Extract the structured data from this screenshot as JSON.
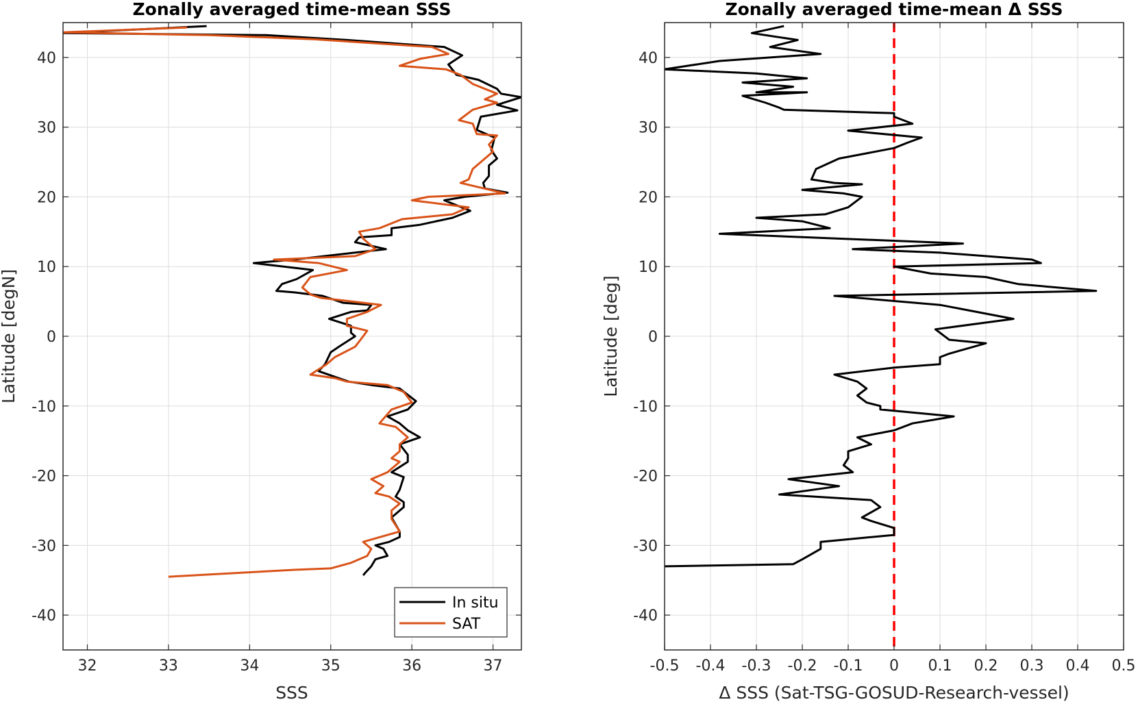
{
  "chart_data": [
    {
      "type": "line",
      "title": "Zonally averaged time-mean SSS",
      "xlabel": "SSS",
      "ylabel": "Latitude [degN]",
      "xlim": [
        31.7,
        37.35
      ],
      "ylim": [
        -45,
        45
      ],
      "xticks": [
        32,
        33,
        34,
        35,
        36,
        37
      ],
      "yticks": [
        -40,
        -30,
        -20,
        -10,
        0,
        10,
        20,
        30,
        40
      ],
      "grid": true,
      "legend_location": "bottom-right",
      "series": [
        {
          "name": "In situ",
          "color": "#000000",
          "points": [
            [
              33.47,
              44.5
            ],
            [
              31.7,
              43.5
            ],
            [
              34.2,
              43.2
            ],
            [
              35.2,
              42.5
            ],
            [
              36.4,
              41.5
            ],
            [
              36.62,
              40.3
            ],
            [
              36.45,
              39.0
            ],
            [
              36.55,
              37.5
            ],
            [
              36.82,
              36.8
            ],
            [
              37.05,
              35.5
            ],
            [
              37.1,
              34.8
            ],
            [
              37.35,
              34.3
            ],
            [
              37.05,
              33.2
            ],
            [
              37.3,
              32.4
            ],
            [
              36.85,
              31.5
            ],
            [
              36.8,
              29.6
            ],
            [
              37.02,
              28.5
            ],
            [
              36.98,
              26.7
            ],
            [
              37.05,
              25.5
            ],
            [
              36.95,
              24.5
            ],
            [
              36.95,
              23.0
            ],
            [
              36.88,
              22.0
            ],
            [
              36.9,
              21.2
            ],
            [
              37.18,
              20.6
            ],
            [
              36.65,
              20.0
            ],
            [
              36.4,
              19.5
            ],
            [
              36.72,
              18.0
            ],
            [
              36.5,
              17.0
            ],
            [
              36.1,
              16.0
            ],
            [
              35.75,
              15.5
            ],
            [
              35.75,
              14.5
            ],
            [
              35.35,
              14.2
            ],
            [
              35.3,
              13.5
            ],
            [
              35.68,
              12.5
            ],
            [
              35.15,
              11.8
            ],
            [
              34.55,
              11.0
            ],
            [
              34.05,
              10.5
            ],
            [
              34.78,
              9.5
            ],
            [
              34.58,
              8.2
            ],
            [
              34.4,
              7.5
            ],
            [
              34.33,
              6.5
            ],
            [
              34.55,
              6.3
            ],
            [
              34.9,
              5.8
            ],
            [
              35.15,
              4.8
            ],
            [
              35.5,
              4.5
            ],
            [
              35.45,
              3.7
            ],
            [
              35.25,
              3.5
            ],
            [
              34.98,
              2.5
            ],
            [
              35.25,
              1.5
            ],
            [
              35.25,
              0.5
            ],
            [
              35.3,
              0.0
            ],
            [
              35.1,
              -1.5
            ],
            [
              35.0,
              -2.3
            ],
            [
              34.93,
              -4.0
            ],
            [
              34.85,
              -5.0
            ],
            [
              35.22,
              -6.5
            ],
            [
              35.5,
              -7.0
            ],
            [
              35.85,
              -7.5
            ],
            [
              36.05,
              -9.3
            ],
            [
              35.95,
              -10.5
            ],
            [
              35.7,
              -11.5
            ],
            [
              35.85,
              -12.5
            ],
            [
              35.95,
              -13.5
            ],
            [
              36.1,
              -14.5
            ],
            [
              35.85,
              -15.5
            ],
            [
              35.95,
              -17.0
            ],
            [
              35.95,
              -18.0
            ],
            [
              35.75,
              -19.5
            ],
            [
              35.9,
              -20.2
            ],
            [
              35.85,
              -22.0
            ],
            [
              35.8,
              -23.0
            ],
            [
              35.9,
              -23.8
            ],
            [
              35.9,
              -24.5
            ],
            [
              35.75,
              -26.0
            ],
            [
              35.85,
              -28.0
            ],
            [
              35.85,
              -28.8
            ],
            [
              35.72,
              -29.5
            ],
            [
              35.55,
              -30.0
            ],
            [
              35.65,
              -30.5
            ],
            [
              35.7,
              -31.5
            ],
            [
              35.55,
              -32.0
            ],
            [
              35.5,
              -33.0
            ],
            [
              35.42,
              -34.0
            ],
            [
              35.4,
              -34.3
            ]
          ]
        },
        {
          "name": "SAT",
          "color": "#D95319",
          "points": [
            [
              33.23,
              44.3
            ],
            [
              31.7,
              43.6
            ],
            [
              33.5,
              43.2
            ],
            [
              34.8,
              42.6
            ],
            [
              36.25,
              41.5
            ],
            [
              36.45,
              40.5
            ],
            [
              36.1,
              39.8
            ],
            [
              35.85,
              38.8
            ],
            [
              36.42,
              38.3
            ],
            [
              36.6,
              37.5
            ],
            [
              36.75,
              36.2
            ],
            [
              37.05,
              34.8
            ],
            [
              36.9,
              34.0
            ],
            [
              37.05,
              33.5
            ],
            [
              36.75,
              32.5
            ],
            [
              36.58,
              31.0
            ],
            [
              36.75,
              30.5
            ],
            [
              36.8,
              29.0
            ],
            [
              37.05,
              28.8
            ],
            [
              36.95,
              27.5
            ],
            [
              37.0,
              26.5
            ],
            [
              36.85,
              25.0
            ],
            [
              36.75,
              24.0
            ],
            [
              36.7,
              22.5
            ],
            [
              36.6,
              22.0
            ],
            [
              37.15,
              20.5
            ],
            [
              36.2,
              20.0
            ],
            [
              36.0,
              19.5
            ],
            [
              36.35,
              19.0
            ],
            [
              36.7,
              18.5
            ],
            [
              36.5,
              17.5
            ],
            [
              35.88,
              16.8
            ],
            [
              35.6,
              15.5
            ],
            [
              35.35,
              15.0
            ],
            [
              35.4,
              14.0
            ],
            [
              35.55,
              12.5
            ],
            [
              35.3,
              11.5
            ],
            [
              34.3,
              11.0
            ],
            [
              34.85,
              10.5
            ],
            [
              35.2,
              9.5
            ],
            [
              34.75,
              8.5
            ],
            [
              34.65,
              7.0
            ],
            [
              34.75,
              6.0
            ],
            [
              34.88,
              5.5
            ],
            [
              35.4,
              4.8
            ],
            [
              35.62,
              4.5
            ],
            [
              35.45,
              3.5
            ],
            [
              35.2,
              2.5
            ],
            [
              35.2,
              1.5
            ],
            [
              35.45,
              0.8
            ],
            [
              35.4,
              0.0
            ],
            [
              35.3,
              -1.5
            ],
            [
              35.05,
              -3.0
            ],
            [
              34.95,
              -4.0
            ],
            [
              34.75,
              -5.5
            ],
            [
              35.05,
              -6.0
            ],
            [
              35.2,
              -6.5
            ],
            [
              35.7,
              -7.0
            ],
            [
              35.9,
              -8.0
            ],
            [
              36.0,
              -9.5
            ],
            [
              35.75,
              -10.5
            ],
            [
              35.6,
              -12.5
            ],
            [
              35.8,
              -13.0
            ],
            [
              35.95,
              -14.5
            ],
            [
              35.85,
              -15.5
            ],
            [
              35.85,
              -16.5
            ],
            [
              35.75,
              -17.5
            ],
            [
              35.85,
              -18.0
            ],
            [
              35.7,
              -19.5
            ],
            [
              35.6,
              -20.0
            ],
            [
              35.5,
              -20.5
            ],
            [
              35.65,
              -21.5
            ],
            [
              35.55,
              -22.5
            ],
            [
              35.72,
              -23.0
            ],
            [
              35.85,
              -24.0
            ],
            [
              35.75,
              -25.0
            ],
            [
              35.75,
              -26.2
            ],
            [
              35.85,
              -28.0
            ],
            [
              35.7,
              -28.5
            ],
            [
              35.4,
              -29.5
            ],
            [
              35.5,
              -30.5
            ],
            [
              35.45,
              -31.5
            ],
            [
              35.25,
              -32.5
            ],
            [
              35.0,
              -33.3
            ],
            [
              34.55,
              -33.5
            ],
            [
              33.0,
              -34.5
            ]
          ]
        }
      ]
    },
    {
      "type": "line",
      "title": "Zonally averaged time-mean Δ SSS",
      "xlabel": "Δ SSS (Sat-TSG-GOSUD-Research-vessel)",
      "ylabel": "Latitude [deg]",
      "xlim": [
        -0.5,
        0.5
      ],
      "ylim": [
        -45,
        45
      ],
      "xticks": [
        -0.5,
        -0.4,
        -0.3,
        -0.2,
        -0.1,
        0,
        0.1,
        0.2,
        0.3,
        0.4,
        0.5
      ],
      "yticks": [
        -40,
        -30,
        -20,
        -10,
        0,
        10,
        20,
        30,
        40
      ],
      "grid": true,
      "reference_line": {
        "x": 0,
        "color": "#FF0000",
        "style": "dashed"
      },
      "series": [
        {
          "color": "#000000",
          "points": [
            [
              -0.24,
              44.5
            ],
            [
              -0.31,
              43.5
            ],
            [
              -0.21,
              42.5
            ],
            [
              -0.27,
              41.5
            ],
            [
              -0.16,
              40.5
            ],
            [
              -0.38,
              39.5
            ],
            [
              -0.5,
              38.3
            ],
            [
              -0.3,
              37.7
            ],
            [
              -0.19,
              37.0
            ],
            [
              -0.33,
              36.4
            ],
            [
              -0.22,
              35.8
            ],
            [
              -0.3,
              35.0
            ],
            [
              -0.19,
              35.0
            ],
            [
              -0.33,
              34.5
            ],
            [
              -0.28,
              33.5
            ],
            [
              -0.25,
              32.8
            ],
            [
              -0.24,
              32.5
            ],
            [
              0.0,
              32.0
            ],
            [
              0.0,
              31.5
            ],
            [
              0.04,
              30.5
            ],
            [
              -0.1,
              29.5
            ],
            [
              0.06,
              28.5
            ],
            [
              0.03,
              27.8
            ],
            [
              0.0,
              27.0
            ],
            [
              -0.12,
              25.5
            ],
            [
              -0.17,
              24.0
            ],
            [
              -0.18,
              22.5
            ],
            [
              -0.13,
              22.0
            ],
            [
              -0.07,
              21.8
            ],
            [
              -0.12,
              21.5
            ],
            [
              -0.2,
              21.0
            ],
            [
              -0.11,
              20.5
            ],
            [
              -0.07,
              20.0
            ],
            [
              -0.1,
              18.5
            ],
            [
              -0.15,
              17.5
            ],
            [
              -0.3,
              17.0
            ],
            [
              -0.2,
              16.5
            ],
            [
              -0.14,
              15.5
            ],
            [
              -0.38,
              14.7
            ],
            [
              0.15,
              13.3
            ],
            [
              -0.09,
              12.5
            ],
            [
              0.1,
              12.0
            ],
            [
              0.3,
              11.0
            ],
            [
              0.32,
              10.5
            ],
            [
              0.0,
              10.0
            ],
            [
              0.08,
              9.0
            ],
            [
              0.2,
              8.5
            ],
            [
              0.27,
              7.5
            ],
            [
              0.44,
              6.5
            ],
            [
              -0.13,
              5.8
            ],
            [
              0.1,
              4.5
            ],
            [
              0.26,
              2.5
            ],
            [
              0.09,
              1.0
            ],
            [
              0.12,
              -0.5
            ],
            [
              0.2,
              -1.0
            ],
            [
              0.12,
              -2.5
            ],
            [
              0.1,
              -3.0
            ],
            [
              0.1,
              -4.0
            ],
            [
              0.0,
              -4.5
            ],
            [
              -0.13,
              -5.5
            ],
            [
              -0.08,
              -6.5
            ],
            [
              -0.06,
              -7.5
            ],
            [
              -0.08,
              -8.5
            ],
            [
              -0.06,
              -9.5
            ],
            [
              -0.03,
              -10.0
            ],
            [
              -0.03,
              -10.5
            ],
            [
              0.13,
              -11.5
            ],
            [
              0.04,
              -12.5
            ],
            [
              0.0,
              -13.5
            ],
            [
              -0.08,
              -14.5
            ],
            [
              -0.05,
              -15.5
            ],
            [
              -0.1,
              -16.5
            ],
            [
              -0.1,
              -17.5
            ],
            [
              -0.11,
              -18.5
            ],
            [
              -0.09,
              -19.5
            ],
            [
              -0.23,
              -20.5
            ],
            [
              -0.12,
              -21.5
            ],
            [
              -0.25,
              -22.7
            ],
            [
              -0.05,
              -23.5
            ],
            [
              -0.03,
              -24.5
            ],
            [
              -0.07,
              -26.0
            ],
            [
              -0.05,
              -26.5
            ],
            [
              0.0,
              -27.5
            ],
            [
              0.0,
              -28.5
            ],
            [
              -0.16,
              -29.5
            ],
            [
              -0.16,
              -30.5
            ],
            [
              -0.2,
              -32.0
            ],
            [
              -0.22,
              -32.7
            ],
            [
              -0.5,
              -33.0
            ]
          ]
        }
      ]
    }
  ]
}
